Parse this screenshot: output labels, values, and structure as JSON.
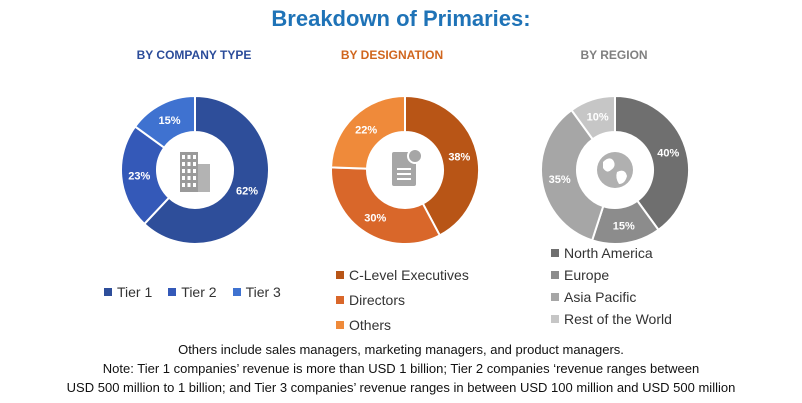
{
  "page_title": "Breakdown of Primaries:",
  "chart_data": [
    {
      "type": "pie",
      "title": "BY COMPANY TYPE",
      "title_color": "#2b4c9a",
      "categories": [
        "Tier 1",
        "Tier 2",
        "Tier 3"
      ],
      "values": [
        62,
        23,
        15
      ],
      "labels": [
        "62%",
        "23%",
        "15%"
      ],
      "colors": [
        "#2e4e9a",
        "#3459b8",
        "#3f72d0"
      ],
      "center_icon": "building-icon",
      "legend_placement": "bottom"
    },
    {
      "type": "pie",
      "title": "BY DESIGNATION",
      "title_color": "#d0661e",
      "categories": [
        "C-Level Executives",
        "Directors",
        "Others"
      ],
      "values": [
        38,
        30,
        22
      ],
      "labels": [
        "38%",
        "30%",
        "22%"
      ],
      "colors": [
        "#b85516",
        "#d9672a",
        "#ef8a3a"
      ],
      "center_icon": "document-icon",
      "legend_placement": "bottom"
    },
    {
      "type": "pie",
      "title": "BY REGION",
      "title_color": "#808080",
      "categories": [
        "North America",
        "Europe",
        "Asia Pacific",
        "Rest of the World"
      ],
      "values": [
        40,
        15,
        35,
        10
      ],
      "labels": [
        "40%",
        "15%",
        "35%",
        "10%"
      ],
      "colors": [
        "#6f6f6f",
        "#8c8c8c",
        "#a6a6a6",
        "#c6c6c6"
      ],
      "center_icon": "globe-icon",
      "legend_placement": "bottom"
    }
  ],
  "notes": {
    "line1": "Others include sales managers, marketing managers, and product managers.",
    "line2": "Note: Tier 1 companies’ revenue is more than USD 1 billion; Tier 2 companies ‘revenue ranges between",
    "line3": "USD 500 million to 1 billion; and Tier 3 companies’ revenue ranges in between USD 100 million and USD 500 million"
  }
}
